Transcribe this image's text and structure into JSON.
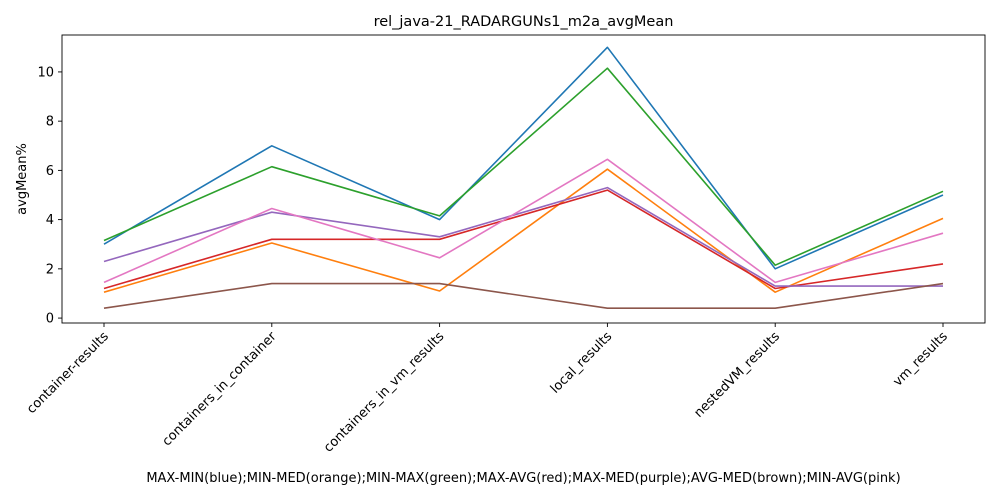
{
  "chart_data": {
    "type": "line",
    "title": "rel_java-21_RADARGUNs1_m2a_avgMean",
    "xlabel": "MAX-MIN(blue);MIN-MED(orange);MIN-MAX(green);MAX-AVG(red);MAX-MED(purple);AVG-MED(brown);MIN-AVG(pink)",
    "ylabel": "avgMean%",
    "categories": [
      "container-results",
      "containers_in_container",
      "containers_in_vm_results",
      "local_results",
      "nestedVM_results",
      "vm_results"
    ],
    "ylim": [
      -0.2,
      11.5
    ],
    "yticks": [
      0,
      2,
      4,
      6,
      8,
      10
    ],
    "grid": false,
    "legend": "none",
    "series": [
      {
        "color": "#1f77b4",
        "values": [
          3.0,
          7.0,
          4.0,
          11.0,
          2.0,
          5.0
        ]
      },
      {
        "color": "#ff7f0e",
        "values": [
          1.05,
          3.05,
          1.1,
          6.05,
          1.05,
          4.05
        ]
      },
      {
        "color": "#2ca02c",
        "values": [
          3.15,
          6.15,
          4.15,
          10.15,
          2.15,
          5.15
        ]
      },
      {
        "color": "#d62728",
        "values": [
          1.2,
          3.2,
          3.2,
          5.2,
          1.2,
          2.2
        ]
      },
      {
        "color": "#9467bd",
        "values": [
          2.3,
          4.3,
          3.3,
          5.3,
          1.3,
          1.3
        ]
      },
      {
        "color": "#8c564b",
        "values": [
          0.4,
          1.4,
          1.4,
          0.4,
          0.4,
          1.4
        ]
      },
      {
        "color": "#e377c2",
        "values": [
          1.45,
          4.45,
          2.45,
          6.45,
          1.45,
          3.45
        ]
      }
    ]
  }
}
